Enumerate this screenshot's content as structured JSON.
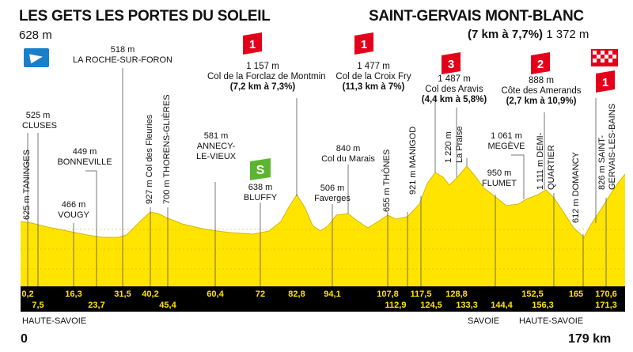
{
  "start": {
    "name": "LES GETS LES PORTES DU SOLEIL",
    "altitude": "628 m"
  },
  "finish": {
    "name": "SAINT-GERVAIS MONT-BLANC",
    "climb": "(7 km à 7,7%)",
    "altitude": "1 372 m"
  },
  "distance_start": "0",
  "distance_end": "179 km",
  "colors": {
    "profile_fill": "#ffe400",
    "km_band": "#000000",
    "km_text": "#ffe400",
    "climb_badge": "#e3001b",
    "sprint_badge": "#5cb531",
    "start_flag": "#1a7fc9"
  },
  "climbs": [
    {
      "category": "1",
      "altitude": "1 157 m",
      "name": "Col de la Forclaz de Montmin",
      "detail": "(7,2 km à 7,3%)"
    },
    {
      "category": "1",
      "altitude": "1 477 m",
      "name": "Col de la Croix Fry",
      "detail": "(11,3 km à 7%)"
    },
    {
      "category": "3",
      "altitude": "1 487 m",
      "name": "Col des Aravis",
      "detail": "(4,4 km à 5,8%)"
    },
    {
      "category": "2",
      "altitude": "888 m",
      "name": "Côte des Amerands",
      "detail": "(2,7 km à 10,9%)"
    },
    {
      "category": "1",
      "altitude": "",
      "name": "",
      "detail": ""
    }
  ],
  "sprint": {
    "label": "S"
  },
  "points": [
    {
      "altitude": "525 m",
      "name": "CLUSES"
    },
    {
      "altitude": "518 m",
      "name": "LA ROCHE-SUR-FORON"
    },
    {
      "altitude": "449 m",
      "name": "BONNEVILLE"
    },
    {
      "altitude": "466 m",
      "name": "VOUGY"
    },
    {
      "altitude": "581 m",
      "name": "ANNECY-",
      "name2": "LE-VIEUX"
    },
    {
      "altitude": "638 m",
      "name": "BLUFFY"
    },
    {
      "altitude": "840 m",
      "name": "Col du Marais"
    },
    {
      "altitude": "506 m",
      "name": "Faverges"
    },
    {
      "altitude": "1 061 m",
      "name": "MEGÈVE"
    },
    {
      "altitude": "950 m",
      "name": "FLUMET"
    }
  ],
  "vertical_points": [
    "625 m TANINGES",
    "927 m Col des Fleuries",
    "700 m THORENS-GLIÈRES",
    "655 m THÔNES",
    "921 m MANIGOD",
    "1 220 m",
    "La Praise",
    "1 111 m DEMI-",
    "QUARTIER",
    "612 m DOMANCY",
    "826 m SAINT-",
    "GERVAIS-LES-BAINS"
  ],
  "km_top": [
    "0,2",
    "16,3",
    "31,5",
    "40,2",
    "60,4",
    "72",
    "82,8",
    "94,1",
    "107,8",
    "117,5",
    "128,8",
    "152,5",
    "165",
    "170,6"
  ],
  "km_bottom": [
    "7,5",
    "23,7",
    "45,4",
    "112,9",
    "124,5",
    "133,3",
    "144,4",
    "156,3",
    "171,3"
  ],
  "regions": [
    "HAUTE-SAVOIE",
    "SAVOIE",
    "HAUTE-SAVOIE"
  ]
}
